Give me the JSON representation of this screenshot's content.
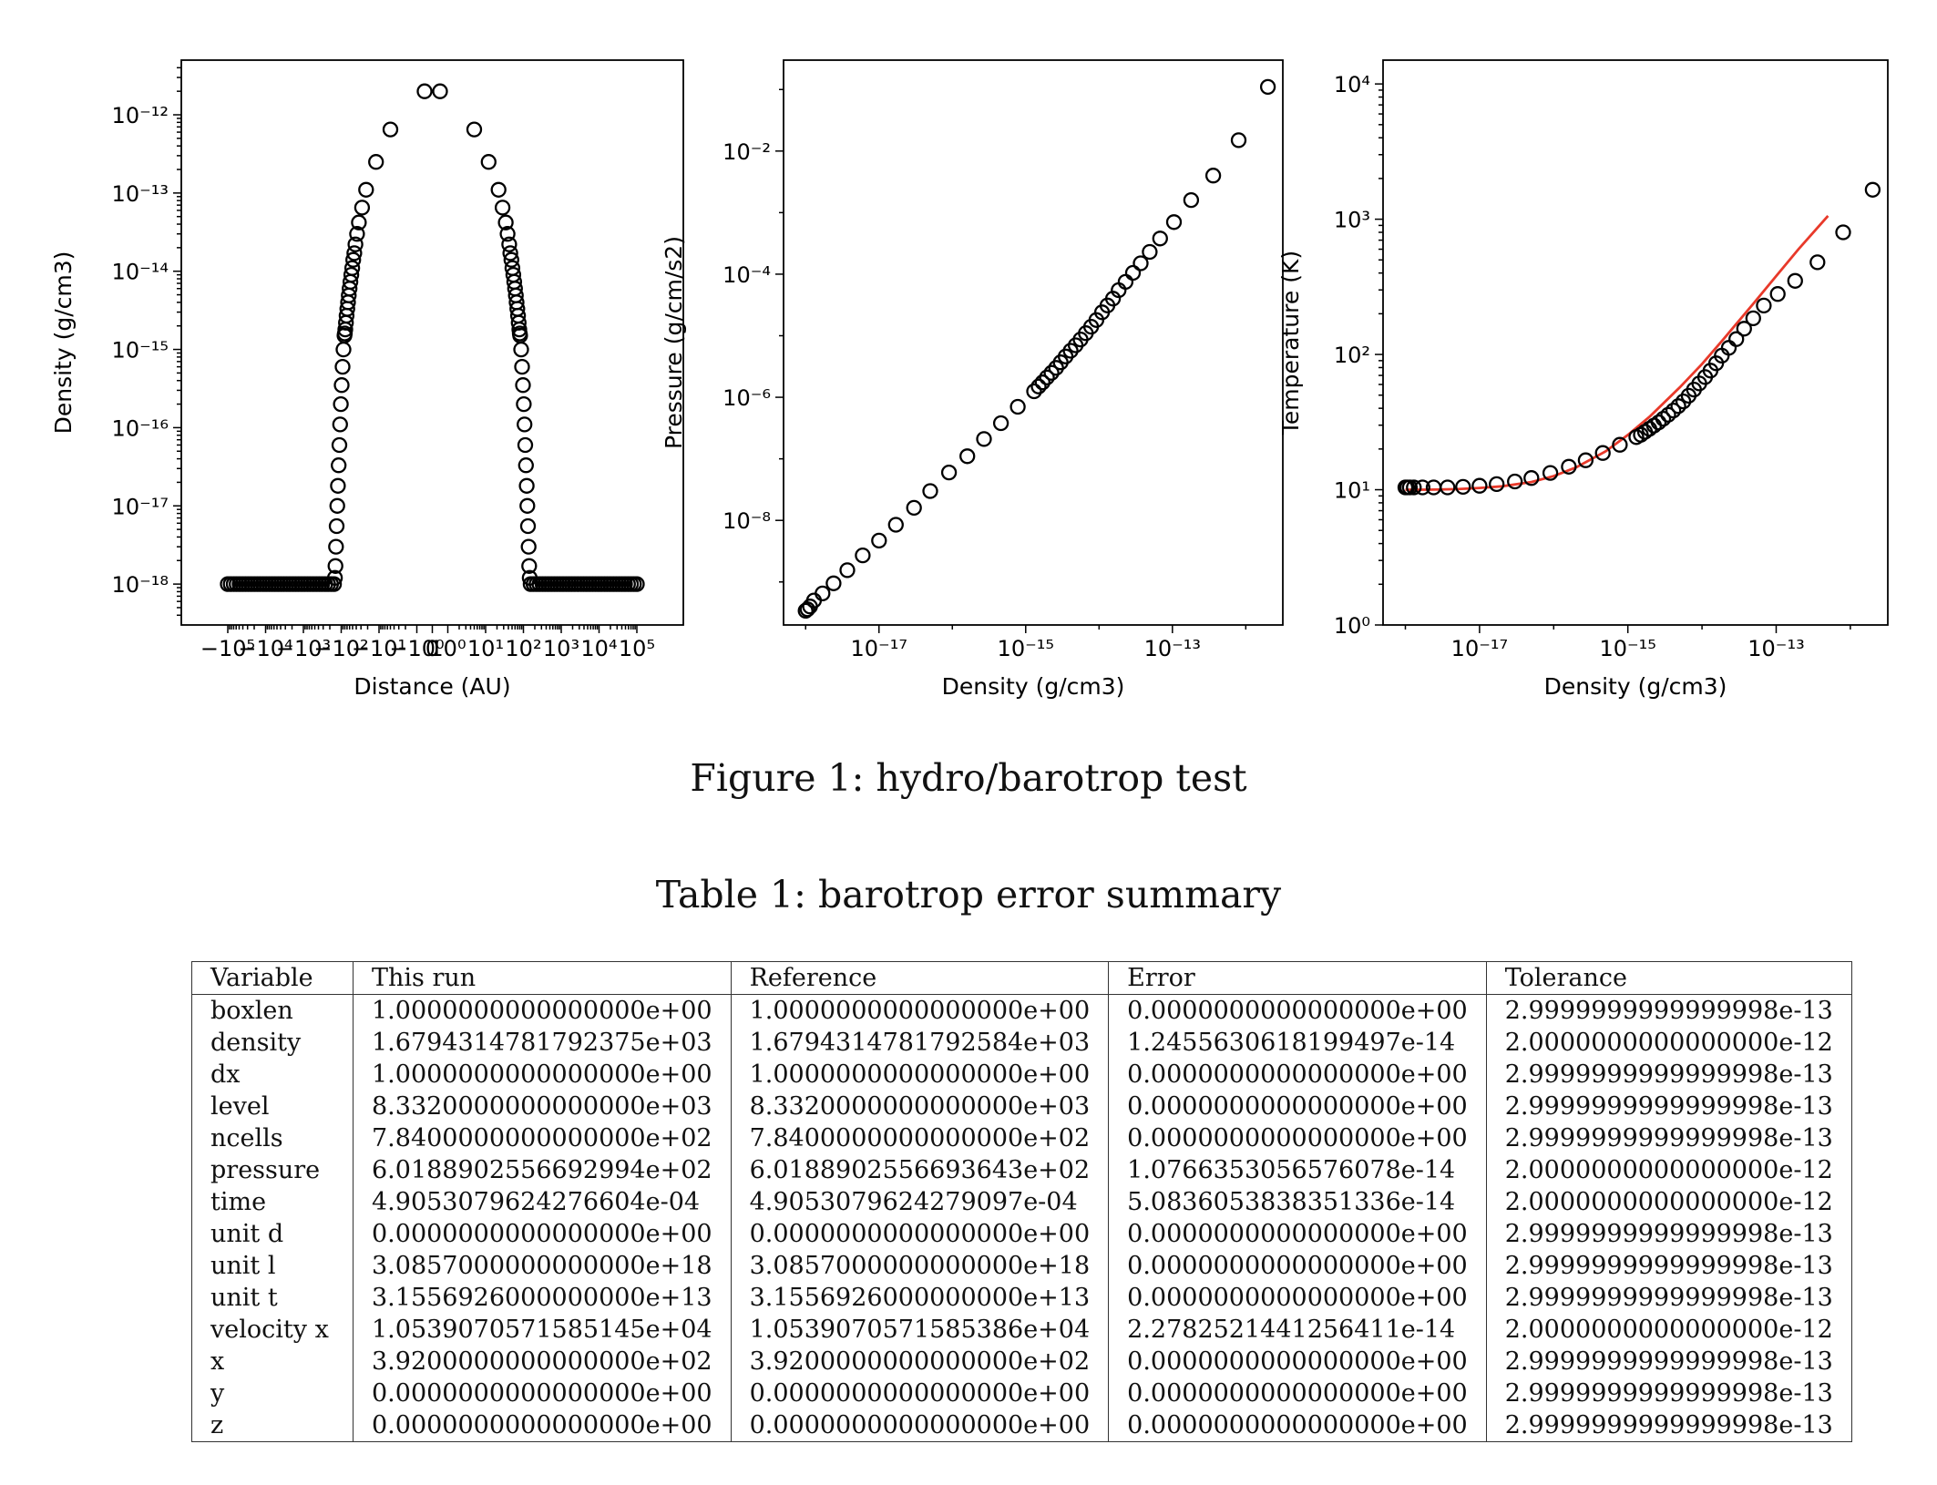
{
  "chart_data": [
    {
      "type": "scatter",
      "xlabel": "Distance (AU)",
      "ylabel": "Density (g/cm3)",
      "x_scale": "symlog",
      "y_scale": "log",
      "ylim": [
        3e-19,
        5e-12
      ],
      "x_tick_labels": [
        "−10⁵",
        "−10⁴",
        "−10³",
        "−10²",
        "−10¹",
        "−10⁰",
        "0",
        "10⁰",
        "10¹",
        "10²",
        "10³",
        "10⁴",
        "10⁵"
      ],
      "y_tick_labels": [
        "10⁻¹⁸",
        "10⁻¹⁷",
        "10⁻¹⁶",
        "10⁻¹⁵",
        "10⁻¹⁴",
        "10⁻¹³",
        "10⁻¹²"
      ],
      "series": [
        {
          "marker": "open-circle",
          "points": [
            [
              -0.5,
              2e-12
            ],
            [
              -5,
              6.5e-13
            ],
            [
              -12,
              2.5e-13
            ],
            [
              -22,
              1.1e-13
            ],
            [
              -28,
              6.5e-14
            ],
            [
              -34,
              4.2e-14
            ],
            [
              -38,
              3e-14
            ],
            [
              -42,
              2.2e-14
            ],
            [
              -45,
              1.7e-14
            ],
            [
              -48,
              1.4e-14
            ],
            [
              -51,
              1.1e-14
            ],
            [
              -54,
              9e-15
            ],
            [
              -57,
              7.3e-15
            ],
            [
              -60,
              6e-15
            ],
            [
              -63,
              4.9e-15
            ],
            [
              -66,
              4e-15
            ],
            [
              -69,
              3.3e-15
            ],
            [
              -72,
              2.7e-15
            ],
            [
              -75,
              2.2e-15
            ],
            [
              -78,
              1.8e-15
            ],
            [
              -80,
              1.6e-15
            ],
            [
              -82,
              1.5e-15
            ],
            [
              -87,
              1e-15
            ],
            [
              -92,
              6e-16
            ],
            [
              -97,
              3.5e-16
            ],
            [
              -102,
              2e-16
            ],
            [
              -107,
              1.1e-16
            ],
            [
              -112,
              6e-17
            ],
            [
              -117,
              3.3e-17
            ],
            [
              -122,
              1.8e-17
            ],
            [
              -127,
              1e-17
            ],
            [
              -132,
              5.5e-18
            ],
            [
              -137,
              3e-18
            ],
            [
              -142,
              1.7e-18
            ],
            [
              -147,
              1.2e-18
            ],
            [
              0.5,
              2e-12
            ],
            [
              5,
              6.5e-13
            ],
            [
              12,
              2.5e-13
            ],
            [
              22,
              1.1e-13
            ],
            [
              28,
              6.5e-14
            ],
            [
              34,
              4.2e-14
            ],
            [
              38,
              3e-14
            ],
            [
              42,
              2.2e-14
            ],
            [
              45,
              1.7e-14
            ],
            [
              48,
              1.4e-14
            ],
            [
              51,
              1.1e-14
            ],
            [
              54,
              9e-15
            ],
            [
              57,
              7.3e-15
            ],
            [
              60,
              6e-15
            ],
            [
              63,
              4.9e-15
            ],
            [
              66,
              4e-15
            ],
            [
              69,
              3.3e-15
            ],
            [
              72,
              2.7e-15
            ],
            [
              75,
              2.2e-15
            ],
            [
              78,
              1.8e-15
            ],
            [
              80,
              1.6e-15
            ],
            [
              82,
              1.5e-15
            ],
            [
              87,
              1e-15
            ],
            [
              92,
              6e-16
            ],
            [
              97,
              3.5e-16
            ],
            [
              102,
              2e-16
            ],
            [
              107,
              1.1e-16
            ],
            [
              112,
              6e-17
            ],
            [
              117,
              3.3e-17
            ],
            [
              122,
              1.8e-17
            ],
            [
              127,
              1e-17
            ],
            [
              132,
              5.5e-18
            ],
            [
              137,
              3e-18
            ],
            [
              142,
              1.7e-18
            ],
            [
              147,
              1.2e-18
            ]
          ],
          "floor_value": 1e-18,
          "floor_x_ranges": [
            [
              -100000,
              -155
            ],
            [
              155,
              100000
            ]
          ]
        }
      ]
    },
    {
      "type": "scatter",
      "xlabel": "Density (g/cm3)",
      "ylabel": "Pressure (g/cm/s2)",
      "x_scale": "log",
      "y_scale": "log",
      "xlim": [
        5e-19,
        3.2e-12
      ],
      "ylim": [
        2e-10,
        0.3
      ],
      "x_tick_labels": [
        "10⁻¹⁷",
        "10⁻¹⁵",
        "10⁻¹³"
      ],
      "y_tick_labels": [
        "10⁻⁸",
        "10⁻⁶",
        "10⁻⁴",
        "10⁻²"
      ],
      "series": [
        {
          "marker": "open-circle",
          "points": [
            [
              1e-18,
              3.4e-10
            ],
            [
              1.06e-18,
              3.6e-10
            ],
            [
              1.15e-18,
              4e-10
            ],
            [
              1.3e-18,
              5e-10
            ],
            [
              1.7e-18,
              6.5e-10
            ],
            [
              2.4e-18,
              9.5e-10
            ],
            [
              3.7e-18,
              1.55e-09
            ],
            [
              6e-18,
              2.7e-09
            ],
            [
              1e-17,
              4.7e-09
            ],
            [
              1.7e-17,
              8.5e-09
            ],
            [
              3e-17,
              1.6e-08
            ],
            [
              5e-17,
              3e-08
            ],
            [
              9e-17,
              6e-08
            ],
            [
              1.6e-16,
              1.1e-07
            ],
            [
              2.7e-16,
              2.1e-07
            ],
            [
              4.6e-16,
              3.8e-07
            ],
            [
              7.8e-16,
              7e-07
            ],
            [
              1.3e-15,
              1.25e-06
            ],
            [
              1.5e-15,
              1.5e-06
            ],
            [
              1.7e-15,
              1.75e-06
            ],
            [
              1.95e-15,
              2.1e-06
            ],
            [
              2.25e-15,
              2.5e-06
            ],
            [
              2.6e-15,
              3e-06
            ],
            [
              3e-15,
              3.7e-06
            ],
            [
              3.5e-15,
              4.6e-06
            ],
            [
              4.1e-15,
              5.7e-06
            ],
            [
              4.8e-15,
              7e-06
            ],
            [
              5.6e-15,
              8.7e-06
            ],
            [
              6.6e-15,
              1.1e-05
            ],
            [
              7.8e-15,
              1.4e-05
            ],
            [
              9.2e-15,
              1.8e-05
            ],
            [
              1.1e-14,
              2.4e-05
            ],
            [
              1.3e-14,
              3.1e-05
            ],
            [
              1.55e-14,
              4e-05
            ],
            [
              1.85e-14,
              5.5e-05
            ],
            [
              2.3e-14,
              7.5e-05
            ],
            [
              2.9e-14,
              0.000105
            ],
            [
              3.7e-14,
              0.00015
            ],
            [
              4.9e-14,
              0.00023
            ],
            [
              6.8e-14,
              0.00038
            ],
            [
              1.05e-13,
              0.0007
            ],
            [
              1.8e-13,
              0.0016
            ],
            [
              3.6e-13,
              0.004
            ],
            [
              8e-13,
              0.015
            ],
            [
              2e-12,
              0.11
            ]
          ]
        }
      ]
    },
    {
      "type": "scatter",
      "xlabel": "Density (g/cm3)",
      "ylabel": "Temperature (K)",
      "x_scale": "log",
      "y_scale": "log",
      "xlim": [
        5e-19,
        3.2e-12
      ],
      "ylim": [
        1,
        15000
      ],
      "x_tick_labels": [
        "10⁻¹⁷",
        "10⁻¹⁵",
        "10⁻¹³"
      ],
      "y_tick_labels": [
        "10⁰",
        "10¹",
        "10²",
        "10³",
        "10⁴"
      ],
      "series": [
        {
          "marker": "open-circle",
          "points": [
            [
              1e-18,
              10.4
            ],
            [
              1.06e-18,
              10.4
            ],
            [
              1.15e-18,
              10.4
            ],
            [
              1.3e-18,
              10.4
            ],
            [
              1.7e-18,
              10.4
            ],
            [
              2.4e-18,
              10.4
            ],
            [
              3.7e-18,
              10.4
            ],
            [
              6e-18,
              10.5
            ],
            [
              1e-17,
              10.7
            ],
            [
              1.7e-17,
              11
            ],
            [
              3e-17,
              11.5
            ],
            [
              5e-17,
              12.2
            ],
            [
              9e-17,
              13.3
            ],
            [
              1.6e-16,
              14.8
            ],
            [
              2.7e-16,
              16.5
            ],
            [
              4.6e-16,
              18.7
            ],
            [
              7.8e-16,
              21.5
            ],
            [
              1.3e-15,
              24.5
            ],
            [
              1.5e-15,
              25.5
            ],
            [
              1.7e-15,
              26.8
            ],
            [
              1.95e-15,
              28.2
            ],
            [
              2.25e-15,
              29.8
            ],
            [
              2.6e-15,
              31.5
            ],
            [
              3e-15,
              33.5
            ],
            [
              3.5e-15,
              35.8
            ],
            [
              4.1e-15,
              38.5
            ],
            [
              4.8e-15,
              41.5
            ],
            [
              5.6e-15,
              45
            ],
            [
              6.6e-15,
              49.5
            ],
            [
              7.8e-15,
              55
            ],
            [
              9.2e-15,
              61
            ],
            [
              1.1e-14,
              68
            ],
            [
              1.3e-14,
              76
            ],
            [
              1.55e-14,
              86
            ],
            [
              1.85e-14,
              98
            ],
            [
              2.3e-14,
              112
            ],
            [
              2.9e-14,
              130
            ],
            [
              3.7e-14,
              155
            ],
            [
              4.9e-14,
              185
            ],
            [
              6.8e-14,
              230
            ],
            [
              1.05e-13,
              280
            ],
            [
              1.8e-13,
              350
            ],
            [
              3.6e-13,
              480
            ],
            [
              8e-13,
              800
            ],
            [
              2e-12,
              1650
            ]
          ]
        },
        {
          "style": "line",
          "color": "#e8392a",
          "points": [
            [
              1e-18,
              10
            ],
            [
              2e-18,
              10
            ],
            [
              5e-18,
              10.1
            ],
            [
              1e-17,
              10.3
            ],
            [
              2e-17,
              10.6
            ],
            [
              5e-17,
              11.4
            ],
            [
              1e-16,
              12.6
            ],
            [
              2e-16,
              14.6
            ],
            [
              5e-16,
              19.2
            ],
            [
              1e-15,
              25.4
            ],
            [
              2e-15,
              35
            ],
            [
              5e-15,
              57
            ],
            [
              1e-14,
              85
            ],
            [
              2e-14,
              132
            ],
            [
              5e-14,
              240
            ],
            [
              1e-13,
              380
            ],
            [
              2e-13,
              600
            ],
            [
              5e-13,
              1060
            ]
          ]
        }
      ]
    }
  ],
  "figure_caption": "Figure 1: hydro/barotrop test",
  "table_caption": "Table 1: barotrop error summary",
  "table": {
    "columns": [
      "Variable",
      "This run",
      "Reference",
      "Error",
      "Tolerance"
    ],
    "rows": [
      [
        "boxlen",
        "1.0000000000000000e+00",
        "1.0000000000000000e+00",
        "0.0000000000000000e+00",
        "2.9999999999999998e-13"
      ],
      [
        "density",
        "1.6794314781792375e+03",
        "1.6794314781792584e+03",
        "1.2455630618199497e-14",
        "2.0000000000000000e-12"
      ],
      [
        "dx",
        "1.0000000000000000e+00",
        "1.0000000000000000e+00",
        "0.0000000000000000e+00",
        "2.9999999999999998e-13"
      ],
      [
        "level",
        "8.3320000000000000e+03",
        "8.3320000000000000e+03",
        "0.0000000000000000e+00",
        "2.9999999999999998e-13"
      ],
      [
        "ncells",
        "7.8400000000000000e+02",
        "7.8400000000000000e+02",
        "0.0000000000000000e+00",
        "2.9999999999999998e-13"
      ],
      [
        "pressure",
        "6.0188902556692994e+02",
        "6.0188902556693643e+02",
        "1.0766353056576078e-14",
        "2.0000000000000000e-12"
      ],
      [
        "time",
        "4.9053079624276604e-04",
        "4.9053079624279097e-04",
        "5.0836053838351336e-14",
        "2.0000000000000000e-12"
      ],
      [
        "unit d",
        "0.0000000000000000e+00",
        "0.0000000000000000e+00",
        "0.0000000000000000e+00",
        "2.9999999999999998e-13"
      ],
      [
        "unit l",
        "3.0857000000000000e+18",
        "3.0857000000000000e+18",
        "0.0000000000000000e+00",
        "2.9999999999999998e-13"
      ],
      [
        "unit t",
        "3.1556926000000000e+13",
        "3.1556926000000000e+13",
        "0.0000000000000000e+00",
        "2.9999999999999998e-13"
      ],
      [
        "velocity x",
        "1.0539070571585145e+04",
        "1.0539070571585386e+04",
        "2.2782521441256411e-14",
        "2.0000000000000000e-12"
      ],
      [
        "x",
        "3.9200000000000000e+02",
        "3.9200000000000000e+02",
        "0.0000000000000000e+00",
        "2.9999999999999998e-13"
      ],
      [
        "y",
        "0.0000000000000000e+00",
        "0.0000000000000000e+00",
        "0.0000000000000000e+00",
        "2.9999999999999998e-13"
      ],
      [
        "z",
        "0.0000000000000000e+00",
        "0.0000000000000000e+00",
        "0.0000000000000000e+00",
        "2.9999999999999998e-13"
      ]
    ]
  }
}
